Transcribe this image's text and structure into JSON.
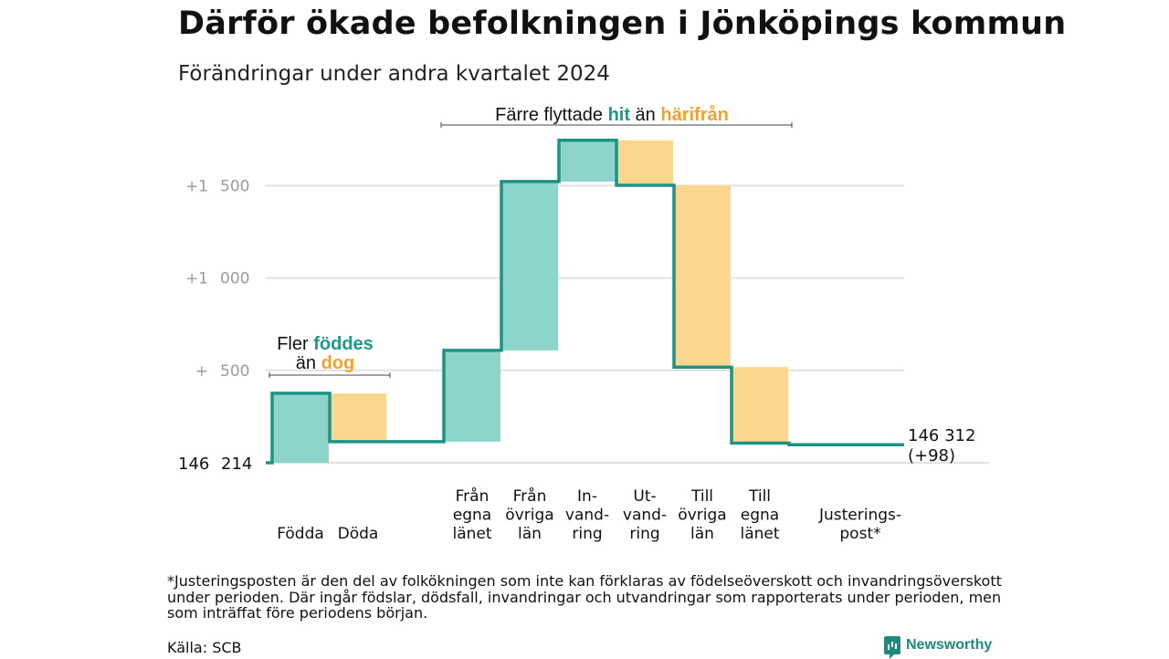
{
  "title": "Därför ökade befolkningen i Jönköpings kommun",
  "subtitle": "Förändringar under andra kvartalet 2024",
  "colors": {
    "in": "#8dd5cb",
    "out": "#fbd68f",
    "line": "#1e9384",
    "grid": "#e2e2e2",
    "tick": "#9a9a9a"
  },
  "chart_data": {
    "type": "waterfall",
    "ylim": [
      0,
      1740
    ],
    "yticks": [
      {
        "value": 500,
        "prefix": "+",
        "num": "500"
      },
      {
        "value": 1000,
        "prefix": "+1",
        "num": "000"
      },
      {
        "value": 1500,
        "prefix": "+1",
        "num": "500"
      }
    ],
    "start": {
      "value": 0,
      "label1": "146",
      "label2": "214"
    },
    "end_label": {
      "line1": "146 312",
      "line2": "(+98)"
    },
    "steps": [
      {
        "label": [
          "Födda"
        ],
        "change": 376,
        "kind": "in"
      },
      {
        "label": [
          "Döda"
        ],
        "change": -262,
        "kind": "out"
      },
      {
        "label": [
          "Från",
          "egna",
          "länet"
        ],
        "change": 494,
        "kind": "in"
      },
      {
        "label": [
          "Från",
          "övriga",
          "län"
        ],
        "change": 914,
        "kind": "in"
      },
      {
        "label": [
          "In-",
          "vand-",
          "ring"
        ],
        "change": 224,
        "kind": "in"
      },
      {
        "label": [
          "Ut-",
          "vand-",
          "ring"
        ],
        "change": -244,
        "kind": "out"
      },
      {
        "label": [
          "Till",
          "övriga",
          "län"
        ],
        "change": -984,
        "kind": "out"
      },
      {
        "label": [
          "Till",
          "egna",
          "länet"
        ],
        "change": -412,
        "kind": "out"
      },
      {
        "label": [
          "Justerings-",
          "post*"
        ],
        "change": -8,
        "kind": "adj"
      }
    ],
    "annotations": [
      {
        "parts": [
          {
            "text": "Fler ",
            "color": ""
          },
          {
            "text": "föddes",
            "color": "in"
          }
        ],
        "parts2": [
          {
            "text": "än ",
            "color": ""
          },
          {
            "text": "dog",
            "color": "out"
          }
        ]
      },
      {
        "parts": [
          {
            "text": "Färre flyttade ",
            "color": ""
          },
          {
            "text": "hit",
            "color": "in"
          },
          {
            "text": " än ",
            "color": ""
          },
          {
            "text": "härifrån",
            "color": "out"
          }
        ]
      }
    ]
  },
  "footnote": "*Justeringsposten är den del av folkökningen som inte kan förklaras av födelseöverskott och invandringsöverskott under perioden. Där ingår födslar, dödsfall, invandringar och utvandringar som rapporterats under perioden, men som inträffat före periodens början.",
  "source": "Källa: SCB",
  "brand": {
    "name": "Newsworthy",
    "icon": "bar-chart-icon"
  }
}
